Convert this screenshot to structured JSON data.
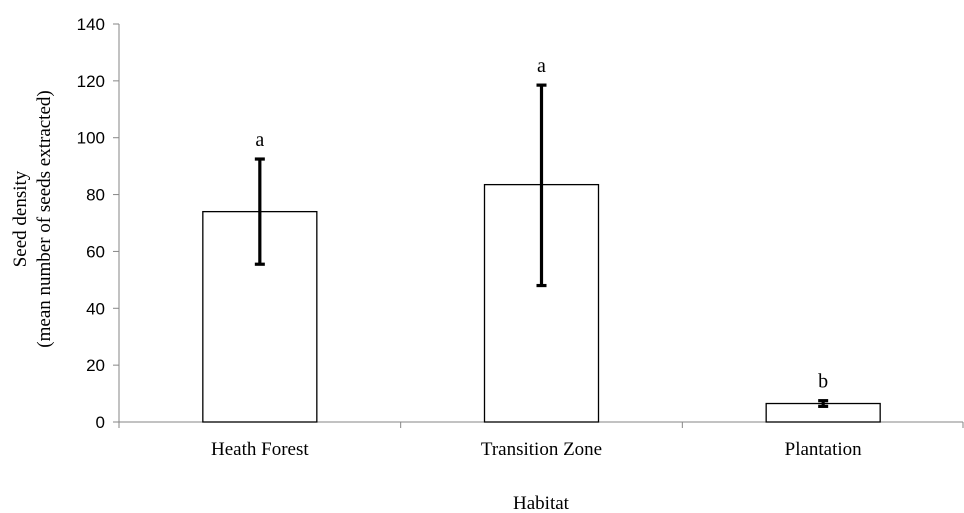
{
  "chart_data": {
    "type": "bar",
    "categories": [
      "Heath Forest",
      "Transition Zone",
      "Plantation"
    ],
    "values": [
      74,
      83.5,
      6.5
    ],
    "error_bars": [
      {
        "low": 55.5,
        "high": 92.5
      },
      {
        "low": 48,
        "high": 118.5
      },
      {
        "low": 5.5,
        "high": 7.5
      }
    ],
    "significance_labels": [
      "a",
      "a",
      "b"
    ],
    "xlabel": "Habitat",
    "ylabel_lines": [
      "Seed density",
      "(mean number of seeds extracted)"
    ],
    "ylim": [
      0,
      140
    ],
    "yticks": [
      0,
      20,
      40,
      60,
      80,
      100,
      120,
      140
    ],
    "grid": false,
    "legend": "none"
  }
}
